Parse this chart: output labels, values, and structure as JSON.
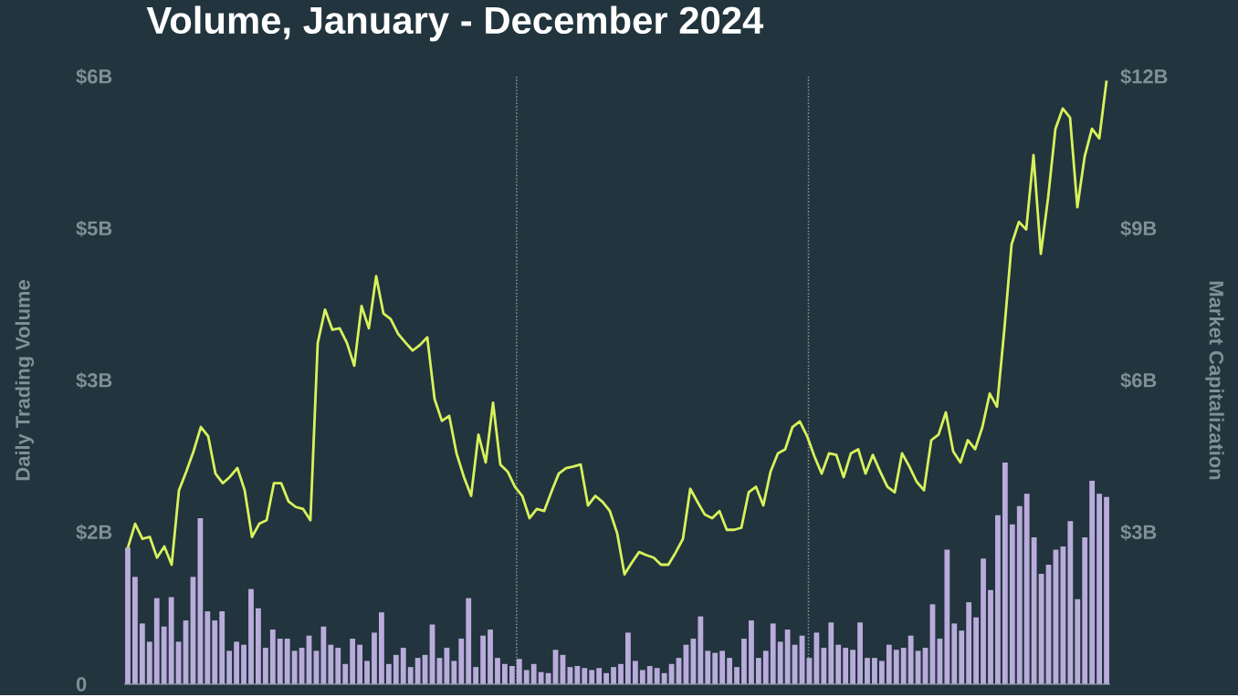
{
  "chart_data": [
    {
      "type": "bar",
      "title": "Volume, January - December 2024",
      "ylabel": "Daily Trading Volume",
      "categories": [
        null,
        null,
        null,
        null,
        null,
        null,
        null,
        null,
        null,
        null,
        null,
        null,
        null,
        null,
        null,
        null,
        null,
        null,
        null,
        null,
        null,
        null,
        null,
        null,
        null,
        null,
        null,
        null,
        null,
        null,
        null,
        null,
        null,
        null,
        null,
        null,
        null,
        null,
        null,
        null,
        null,
        null,
        null,
        null,
        null,
        null,
        null,
        null,
        null,
        null,
        null,
        null,
        null,
        null,
        null,
        null,
        null,
        null,
        null,
        null,
        null,
        null,
        null,
        null,
        null,
        null,
        null,
        null,
        null,
        null,
        null,
        null,
        null,
        null,
        null,
        null,
        null,
        null,
        null,
        null,
        null,
        null,
        null,
        null,
        null,
        null,
        null,
        null,
        null,
        null,
        null,
        null,
        null,
        null,
        null,
        null,
        null,
        null,
        null,
        null,
        null,
        null,
        null,
        null,
        null,
        null,
        null,
        null,
        null,
        null,
        null,
        null,
        null,
        null,
        null,
        null,
        null,
        null,
        null,
        null,
        null,
        null,
        null,
        null,
        null,
        null,
        null,
        null,
        null,
        null,
        null,
        null,
        null,
        null,
        null,
        null
      ],
      "ylim": [
        0,
        6
      ],
      "yticks": [
        0,
        {
          "value": 1.5,
          "label": "$2B"
        },
        {
          "value": 3,
          "label": "$3B"
        },
        {
          "value": 4.5,
          "label": "$5B"
        },
        {
          "value": 6,
          "label": "$6B"
        }
      ],
      "tick_labels": "y",
      "color": "#b9acdb",
      "values": [
        1.35,
        1.06,
        0.6,
        0.42,
        0.85,
        0.57,
        0.86,
        0.42,
        0.63,
        1.06,
        1.64,
        0.72,
        0.63,
        0.72,
        0.33,
        0.42,
        0.39,
        0.94,
        0.75,
        0.36,
        0.54,
        0.45,
        0.45,
        0.33,
        0.36,
        0.48,
        0.33,
        0.57,
        0.39,
        0.36,
        0.2,
        0.45,
        0.39,
        0.23,
        0.51,
        0.71,
        0.2,
        0.29,
        0.36,
        0.17,
        0.26,
        0.29,
        0.59,
        0.26,
        0.36,
        0.23,
        0.45,
        0.85,
        0.17,
        0.48,
        0.54,
        0.26,
        0.2,
        0.18,
        0.25,
        0.14,
        0.2,
        0.12,
        0.11,
        0.34,
        0.29,
        0.17,
        0.18,
        0.16,
        0.14,
        0.16,
        0.11,
        0.17,
        0.2,
        0.51,
        0.23,
        0.14,
        0.18,
        0.16,
        0.11,
        0.2,
        0.26,
        0.39,
        0.45,
        0.67,
        0.33,
        0.31,
        0.33,
        0.26,
        0.17,
        0.45,
        0.63,
        0.26,
        0.33,
        0.6,
        0.42,
        0.54,
        0.39,
        0.48,
        0.26,
        0.51,
        0.36,
        0.61,
        0.39,
        0.36,
        0.34,
        0.61,
        0.26,
        0.26,
        0.23,
        0.39,
        0.34,
        0.36,
        0.48,
        0.33,
        0.36,
        0.79,
        0.45,
        1.33,
        0.6,
        0.53,
        0.81,
        0.66,
        1.24,
        0.93,
        1.67,
        2.19,
        1.58,
        1.76,
        1.88,
        1.45,
        1.09,
        1.18,
        1.33,
        1.36,
        1.61,
        0.84,
        1.45,
        2.01,
        1.88,
        1.85
      ]
    },
    {
      "type": "line",
      "ylabel": "Market Capitalization",
      "categories": [
        null,
        null,
        null,
        null,
        null,
        null,
        null,
        null,
        null,
        null,
        null,
        null,
        null,
        null,
        null,
        null,
        null,
        null,
        null,
        null,
        null,
        null,
        null,
        null,
        null,
        null,
        null,
        null,
        null,
        null,
        null,
        null,
        null,
        null,
        null,
        null,
        null,
        null,
        null,
        null,
        null,
        null,
        null,
        null,
        null,
        null,
        null,
        null,
        null,
        null,
        null,
        null,
        null,
        null,
        null,
        null,
        null,
        null,
        null,
        null,
        null,
        null,
        null,
        null,
        null,
        null,
        null,
        null,
        null,
        null,
        null,
        null,
        null,
        null,
        null,
        null,
        null,
        null,
        null,
        null,
        null,
        null,
        null,
        null,
        null,
        null,
        null,
        null,
        null,
        null,
        null,
        null,
        null,
        null,
        null,
        null,
        null,
        null,
        null,
        null,
        null,
        null,
        null,
        null,
        null,
        null,
        null,
        null,
        null,
        null,
        null,
        null,
        null,
        null,
        null,
        null,
        null,
        null,
        null,
        null,
        null,
        null,
        null,
        null,
        null,
        null,
        null,
        null,
        null,
        null,
        null,
        null,
        null,
        null,
        null
      ],
      "ylim": [
        0,
        12
      ],
      "yticks": [
        {
          "value": 3,
          "label": "$3B"
        },
        {
          "value": 6,
          "label": "$6B"
        },
        {
          "value": 9,
          "label": "$9B"
        },
        {
          "value": 12,
          "label": "$12B"
        }
      ],
      "tick_labels": "y",
      "series": [
        {
          "color": "#d7f25c",
          "values": [
            2.69,
            3.17,
            2.87,
            2.91,
            2.5,
            2.72,
            2.36,
            3.83,
            4.2,
            4.6,
            5.08,
            4.9,
            4.16,
            3.97,
            4.1,
            4.27,
            3.83,
            2.91,
            3.17,
            3.24,
            3.97,
            3.97,
            3.61,
            3.5,
            3.46,
            3.24,
            6.74,
            7.4,
            7.0,
            7.03,
            6.74,
            6.29,
            7.47,
            7.03,
            8.06,
            7.32,
            7.21,
            6.92,
            6.75,
            6.59,
            6.7,
            6.85,
            5.63,
            5.2,
            5.3,
            4.56,
            4.1,
            3.72,
            4.93,
            4.38,
            5.56,
            4.34,
            4.2,
            3.9,
            3.72,
            3.28,
            3.46,
            3.42,
            3.8,
            4.16,
            4.27,
            4.3,
            4.34,
            3.53,
            3.72,
            3.6,
            3.42,
            2.98,
            2.17,
            2.4,
            2.61,
            2.55,
            2.5,
            2.36,
            2.36,
            2.6,
            2.87,
            3.86,
            3.6,
            3.35,
            3.28,
            3.42,
            3.05,
            3.05,
            3.09,
            3.79,
            3.9,
            3.53,
            4.2,
            4.56,
            4.64,
            5.08,
            5.19,
            4.9,
            4.5,
            4.16,
            4.56,
            4.53,
            4.09,
            4.56,
            4.64,
            4.16,
            4.53,
            4.2,
            3.9,
            3.79,
            4.56,
            4.3,
            4.0,
            3.83,
            4.82,
            4.93,
            5.37,
            4.6,
            4.38,
            4.82,
            4.64,
            5.08,
            5.74,
            5.48,
            7.0,
            8.69,
            9.13,
            8.98,
            10.45,
            8.5,
            9.61,
            10.97,
            11.37,
            11.19,
            9.42,
            10.42,
            10.97,
            10.78,
            11.92
          ]
        }
      ]
    }
  ]
}
